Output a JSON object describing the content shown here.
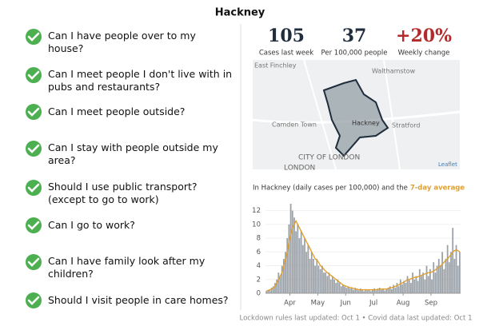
{
  "title": "Hackney",
  "questions": [
    "Can I have people over to my house?",
    "Can I meet people I don't live with in pubs and restaurants?",
    "Can I meet people outside?",
    "Can I stay with people outside my area?",
    "Should I use public transport? (except to go to work)",
    "Can I go to work?",
    "Can I have family look after my children?",
    "Should I visit people in care homes?"
  ],
  "stats": [
    {
      "value": "105",
      "label": "Cases last week"
    },
    {
      "value": "37",
      "label": "Per 100,000 people"
    },
    {
      "value": "+20%",
      "label": "Weekly change"
    }
  ],
  "map_labels": [
    "East Finchley",
    "Walthamstow",
    "Camden Town",
    "Hackney",
    "Stratford",
    "CITY OF LONDON",
    "LONDON",
    "Leaflet"
  ],
  "chart_data": {
    "type": "bar",
    "title": "In Hackney (daily cases per 100,000) and the",
    "color": "#9aa1a8",
    "values": [
      0.3,
      0.5,
      0.4,
      0.8,
      1,
      1.5,
      2,
      3,
      2.5,
      4,
      5,
      6,
      8,
      10,
      13,
      12,
      11,
      9,
      10,
      8,
      9,
      7,
      8,
      6,
      7,
      5,
      6,
      5,
      4,
      5,
      4,
      3.5,
      4,
      3,
      3,
      2.5,
      3,
      2,
      2.5,
      2,
      1.5,
      2,
      1.5,
      1,
      1.2,
      1,
      0.8,
      1,
      0.7,
      0.8,
      0.5,
      0.8,
      0.6,
      0.4,
      0.7,
      0.5,
      0.3,
      0.6,
      0.4,
      0.5,
      0.3,
      0.5,
      0.7,
      0.4,
      0.6,
      0.8,
      0.5,
      0.7,
      0.4,
      0.6,
      0.8,
      1,
      0.6,
      1.2,
      0.8,
      1.5,
      1,
      2,
      1.3,
      1.8,
      1.5,
      2.5,
      2,
      1.5,
      3,
      2,
      2.5,
      1.8,
      3.5,
      2.5,
      3,
      2,
      4,
      2.5,
      3.5,
      2,
      4.5,
      3,
      4,
      5,
      4,
      6,
      3.5,
      5,
      7,
      4.5,
      6,
      9.5,
      5,
      7,
      4,
      6
    ],
    "average": {
      "name": "7-day average",
      "color": "#e0a030",
      "values": [
        0.3,
        0.4,
        0.5,
        0.6,
        0.8,
        1,
        1.5,
        2,
        2.5,
        3,
        4,
        5,
        6,
        7.5,
        8.5,
        9.5,
        10,
        10.5,
        10,
        9.5,
        9,
        8.5,
        8,
        7.5,
        7,
        6.5,
        6,
        5.5,
        5,
        4.8,
        4.5,
        4,
        3.8,
        3.5,
        3.2,
        3,
        2.8,
        2.6,
        2.4,
        2.2,
        2,
        1.8,
        1.6,
        1.4,
        1.2,
        1.1,
        1,
        0.9,
        0.8,
        0.8,
        0.7,
        0.6,
        0.6,
        0.5,
        0.5,
        0.5,
        0.5,
        0.5,
        0.5,
        0.5,
        0.5,
        0.5,
        0.5,
        0.5,
        0.6,
        0.6,
        0.6,
        0.6,
        0.6,
        0.6,
        0.7,
        0.8,
        0.8,
        0.9,
        1,
        1.1,
        1.2,
        1.4,
        1.5,
        1.6,
        1.8,
        2,
        2,
        2.1,
        2.2,
        2.3,
        2.3,
        2.4,
        2.5,
        2.6,
        2.7,
        2.8,
        2.9,
        3,
        3,
        3.1,
        3.2,
        3.4,
        3.6,
        3.8,
        4,
        4.2,
        4.5,
        4.8,
        5,
        5.3,
        5.6,
        6,
        6.2,
        6.3,
        6.2,
        6
      ]
    },
    "ylim": [
      0,
      13
    ],
    "yticks": [
      0,
      2,
      4,
      6,
      8,
      10,
      12
    ],
    "xlim": [
      0,
      112
    ],
    "xticks": [
      {
        "value": 14,
        "label": "Apr"
      },
      {
        "value": 30,
        "label": "May"
      },
      {
        "value": 46,
        "label": "Jun"
      },
      {
        "value": 62,
        "label": "Jul"
      },
      {
        "value": 79,
        "label": "Aug"
      },
      {
        "value": 95,
        "label": "Sep"
      }
    ]
  },
  "footer": "Lockdown rules last updated: Oct 1 • Covid data last updated: Oct 1"
}
